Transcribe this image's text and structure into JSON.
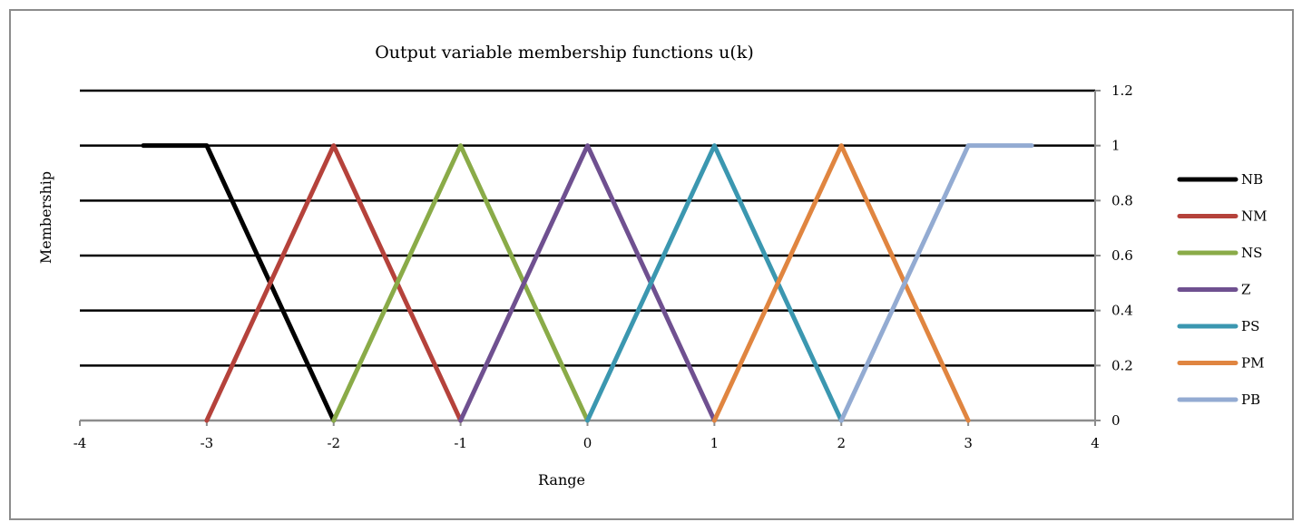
{
  "chart_data": {
    "type": "line",
    "title": "Output variable membership functions u(k)",
    "xlabel": "Range",
    "ylabel": "Membership",
    "xlim": [
      -4,
      4
    ],
    "ylim": [
      0,
      1.2
    ],
    "x_ticks": [
      "-4",
      "-3",
      "-2",
      "-1",
      "0",
      "1",
      "2",
      "3",
      "4"
    ],
    "y_ticks": [
      "0",
      "0.2",
      "0.4",
      "0.6",
      "0.8",
      "1",
      "1.2"
    ],
    "y_axis_side": "right",
    "grid": true,
    "legend_position": "right",
    "series": [
      {
        "name": "NB",
        "color": "#000000",
        "x": [
          -3.5,
          -3,
          -2
        ],
        "y": [
          1,
          1,
          0
        ]
      },
      {
        "name": "NM",
        "color": "#b5423b",
        "x": [
          -3,
          -2,
          -1
        ],
        "y": [
          0,
          1,
          0
        ]
      },
      {
        "name": "NS",
        "color": "#8aab48",
        "x": [
          -2,
          -1,
          0
        ],
        "y": [
          0,
          1,
          0
        ]
      },
      {
        "name": "Z",
        "color": "#6f5090",
        "x": [
          -1,
          0,
          1
        ],
        "y": [
          0,
          1,
          0
        ]
      },
      {
        "name": "PS",
        "color": "#3b97b0",
        "x": [
          0,
          1,
          2
        ],
        "y": [
          0,
          1,
          0
        ]
      },
      {
        "name": "PM",
        "color": "#e08540",
        "x": [
          1,
          2,
          3
        ],
        "y": [
          0,
          1,
          0
        ]
      },
      {
        "name": "PB",
        "color": "#93abd2",
        "x": [
          2,
          3,
          3.5
        ],
        "y": [
          0,
          1,
          1
        ]
      }
    ]
  }
}
